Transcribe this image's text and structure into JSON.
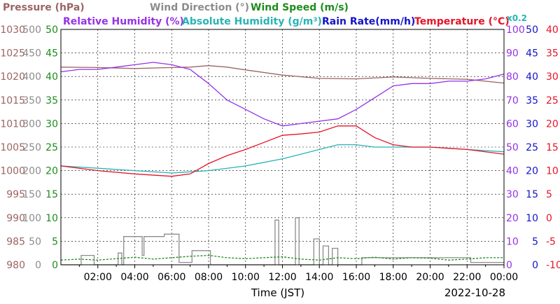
{
  "legend": {
    "row1": [
      {
        "text": "Pressure (hPa)",
        "color": "#9c6464"
      },
      {
        "text": "Wind Direction (°)",
        "color": "#8c8c8c"
      },
      {
        "text": "Wind Speed (m/s)",
        "color": "#1e8c1e"
      }
    ],
    "row2": [
      {
        "text": "Relative Humidity (%)",
        "color": "#9632e6"
      },
      {
        "text": "Absolute Humidity (g/m³)",
        "color": "#28b4b4"
      },
      {
        "text": "Rain Rate(mm/h)",
        "color": "#1414c8"
      },
      {
        "text": "Temperature (°C)",
        "color": "#e61428"
      }
    ],
    "scale_note": {
      "text": "x0.2",
      "color": "#28b4b4"
    }
  },
  "chart_data": {
    "type": "line",
    "xlabel": "Time (JST)",
    "date": "2022-10-28",
    "x_ticks": [
      "02:00",
      "04:00",
      "06:00",
      "08:00",
      "10:00",
      "12:00",
      "14:00",
      "16:00",
      "18:00",
      "20:00",
      "22:00",
      "00:00"
    ],
    "xlim_hours": [
      0,
      24
    ],
    "grid": true,
    "axes": {
      "pressure": {
        "ticks": [
          "1030",
          "1025",
          "1020",
          "1015",
          "1010",
          "1005",
          "1000",
          "995",
          "990",
          "985",
          "980"
        ],
        "ylim": [
          980,
          1030
        ],
        "color": "#9c6464"
      },
      "wind_direction": {
        "ticks": [
          "500",
          "450",
          "400",
          "350",
          "300",
          "250",
          "200",
          "150",
          "100",
          "50",
          "0"
        ],
        "ylim": [
          0,
          500
        ],
        "color": "#8c8c8c"
      },
      "wind_speed": {
        "ticks": [
          "50",
          "45",
          "40",
          "35",
          "30",
          "25",
          "20",
          "15",
          "10",
          "5",
          "0"
        ],
        "ylim": [
          0,
          50
        ],
        "color": "#1e8c1e"
      },
      "relative_humidity": {
        "ticks": [
          "100",
          "90",
          "80",
          "70",
          "60",
          "50",
          "40",
          "30",
          "20",
          "10",
          "0"
        ],
        "ylim": [
          0,
          100
        ],
        "color": "#9632e6"
      },
      "rain_rate": {
        "ticks": [
          "50",
          "45",
          "40",
          "35",
          "30",
          "25",
          "20",
          "15",
          "10",
          "5",
          "0"
        ],
        "ylim": [
          0,
          50
        ],
        "color": "#1414c8"
      },
      "temperature": {
        "ticks": [
          "40",
          "35",
          "30",
          "25",
          "20",
          "15",
          "10",
          "5",
          "0",
          "-5",
          "-10"
        ],
        "ylim": [
          -10,
          40
        ],
        "color": "#e61428"
      }
    },
    "series": [
      {
        "name": "Pressure (hPa)",
        "axis": "pressure",
        "color": "#9c6464",
        "x": [
          0,
          2,
          4,
          6,
          7,
          8,
          9,
          10,
          12,
          14,
          16,
          18,
          20,
          22,
          24
        ],
        "y": [
          1022.0,
          1021.9,
          1021.7,
          1021.9,
          1022.0,
          1022.3,
          1022.0,
          1021.4,
          1020.3,
          1019.6,
          1019.5,
          1019.9,
          1019.6,
          1019.4,
          1018.6
        ]
      },
      {
        "name": "Relative Humidity (%)",
        "axis": "relative_humidity",
        "color": "#9632e6",
        "x": [
          0,
          1,
          2,
          3,
          4,
          5,
          6,
          7,
          8,
          9,
          10,
          11,
          12,
          13,
          14,
          15,
          16,
          17,
          18,
          19,
          20,
          21,
          22,
          23,
          24
        ],
        "y": [
          82,
          83,
          83,
          84,
          85,
          86,
          85,
          83,
          77,
          70,
          66,
          62,
          59,
          60,
          61,
          62,
          66,
          71,
          76,
          77,
          77,
          78,
          78,
          79,
          81
        ]
      },
      {
        "name": "Absolute Humidity (g/m³)",
        "axis": "relative_humidity",
        "scale": 0.2,
        "color": "#28b4b4",
        "x": [
          0,
          2,
          4,
          6,
          8,
          10,
          11,
          12,
          13,
          14,
          15,
          16,
          17,
          18,
          20,
          22,
          24
        ],
        "y": [
          42,
          41,
          40,
          39,
          40,
          42,
          43.5,
          45,
          47,
          49,
          51,
          51,
          50,
          50,
          50,
          49,
          48
        ]
      },
      {
        "name": "Temperature (°C)",
        "axis": "temperature",
        "color": "#e61428",
        "x": [
          0,
          2,
          4,
          6,
          7,
          8,
          9,
          10,
          11,
          12,
          13,
          14,
          15,
          16,
          17,
          18,
          19,
          20,
          22,
          24
        ],
        "y": [
          11.0,
          10.0,
          9.3,
          8.8,
          9.3,
          11.5,
          13.2,
          14.5,
          16.0,
          17.5,
          17.8,
          18.2,
          19.5,
          19.5,
          17.0,
          15.5,
          15.0,
          15.0,
          14.5,
          13.5
        ]
      },
      {
        "name": "Wind Direction (°)",
        "axis": "wind_direction",
        "color": "#8c8c8c",
        "style": "step",
        "x": [
          0,
          1,
          1.1,
          1.7,
          1.8,
          3,
          3.1,
          3.3,
          3.4,
          4,
          4.4,
          4.5,
          5.5,
          5.6,
          6.3,
          6.4,
          7,
          7.1,
          8,
          8.1,
          9,
          11.5,
          11.6,
          11.8,
          12,
          12.6,
          12.7,
          12.9,
          13.5,
          13.7,
          14,
          14.2,
          14.5,
          14.7,
          15,
          16.3,
          18,
          20,
          22,
          22.2,
          24
        ],
        "y": [
          0,
          0,
          20,
          20,
          0,
          0,
          25,
          0,
          60,
          60,
          20,
          60,
          60,
          65,
          65,
          5,
          5,
          30,
          30,
          0,
          0,
          0,
          95,
          0,
          0,
          0,
          100,
          0,
          0,
          55,
          0,
          40,
          0,
          35,
          0,
          15,
          15,
          15,
          15,
          5,
          5
        ]
      },
      {
        "name": "Wind Speed (m/s)",
        "axis": "wind_speed",
        "color": "#1e8c1e",
        "x": [
          0,
          1,
          2,
          3,
          4,
          5,
          6,
          7,
          8,
          9,
          10,
          11,
          12,
          13,
          14,
          15,
          16,
          17,
          18,
          19,
          20,
          21,
          22,
          23,
          24
        ],
        "y": [
          1.0,
          1.2,
          1.0,
          1.3,
          1.6,
          1.2,
          1.5,
          1.8,
          2.0,
          1.5,
          1.3,
          1.5,
          1.7,
          1.2,
          1.0,
          1.5,
          1.3,
          1.6,
          1.2,
          1.5,
          1.4,
          1.0,
          1.2,
          1.5,
          1.5
        ]
      }
    ]
  }
}
